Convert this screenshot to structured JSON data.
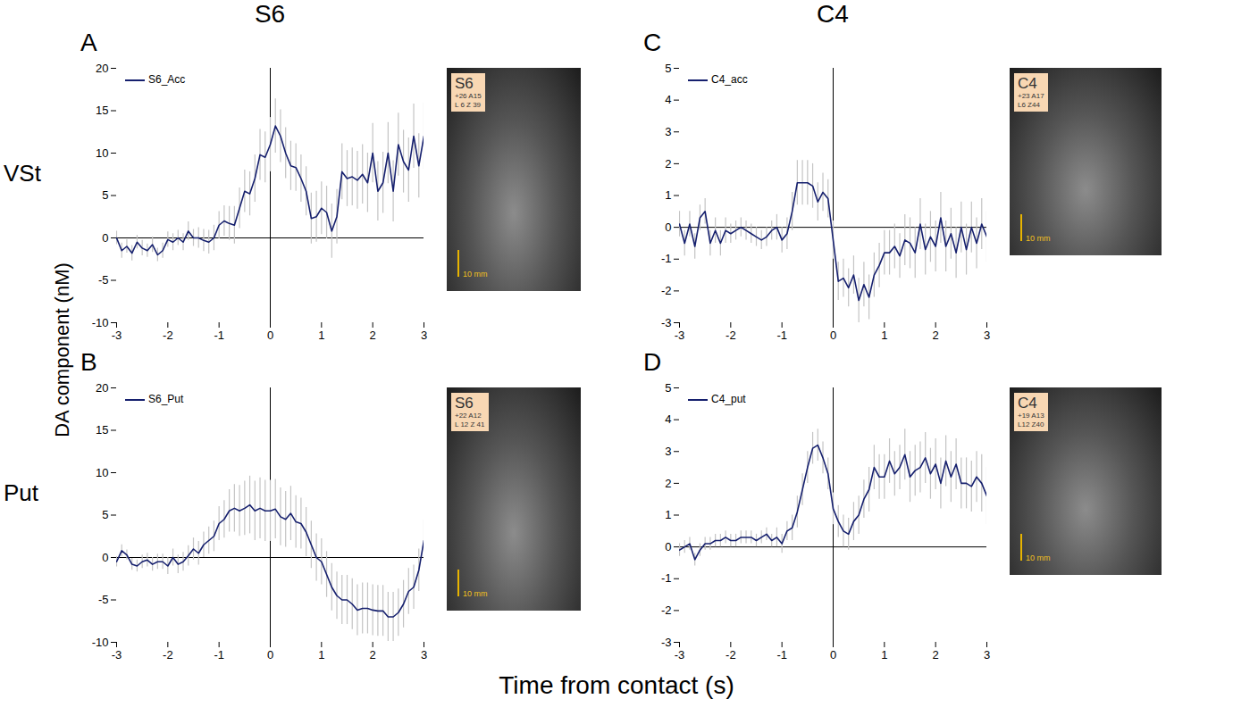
{
  "figure": {
    "column_titles": [
      "S6",
      "C4"
    ],
    "row_labels": [
      "VSt",
      "Put"
    ],
    "ylabel": "DA component (nM)",
    "xlabel": "Time from contact (s)"
  },
  "chart_data": [
    {
      "type": "line",
      "panel": "A",
      "legend": "top-left",
      "grid": false,
      "x": [
        -3,
        -2.9,
        -2.8,
        -2.7,
        -2.6,
        -2.5,
        -2.4,
        -2.3,
        -2.2,
        -2.1,
        -2,
        -1.9,
        -1.8,
        -1.7,
        -1.6,
        -1.5,
        -1.4,
        -1.3,
        -1.2,
        -1.1,
        -1,
        -0.9,
        -0.8,
        -0.7,
        -0.6,
        -0.5,
        -0.4,
        -0.3,
        -0.2,
        -0.1,
        0,
        0.1,
        0.2,
        0.3,
        0.4,
        0.5,
        0.6,
        0.7,
        0.8,
        0.9,
        1,
        1.1,
        1.2,
        1.3,
        1.4,
        1.5,
        1.6,
        1.7,
        1.8,
        1.9,
        2,
        2.1,
        2.2,
        2.3,
        2.4,
        2.5,
        2.6,
        2.7,
        2.8,
        2.9,
        3
      ],
      "xlim": [
        -3,
        3
      ],
      "xticks": [
        -3,
        -2,
        -1,
        0,
        1,
        2,
        3
      ],
      "ylim": [
        -10,
        20
      ],
      "yticks": [
        -10,
        -5,
        0,
        5,
        10,
        15,
        20
      ],
      "series": [
        {
          "name": "S6_Acc",
          "color": "#16206e",
          "values": [
            0,
            -1.5,
            -1,
            -1.8,
            -0.5,
            -1.2,
            -1.5,
            -0.8,
            -2,
            -1.5,
            -0.2,
            -0.5,
            0,
            -0.5,
            0.8,
            0,
            0,
            -0.3,
            -0.5,
            0,
            1.5,
            2,
            1.7,
            1.5,
            3.5,
            5.5,
            5.2,
            7,
            9.8,
            9.5,
            11,
            13.2,
            12,
            10,
            8.5,
            8.3,
            7,
            5.5,
            2.3,
            2.5,
            3.5,
            3,
            0.8,
            2.5,
            7.8,
            7,
            7.2,
            6.8,
            7.5,
            6.5,
            10,
            5.5,
            6.5,
            10,
            5.5,
            11,
            9,
            8,
            12,
            8.5,
            12
          ],
          "error": [
            0.8,
            0.9,
            0.8,
            0.9,
            0.8,
            0.9,
            0.8,
            0.9,
            0.8,
            0.9,
            0.9,
            1.0,
            0.9,
            1.0,
            1.1,
            1.0,
            1.2,
            1.3,
            1.4,
            1.5,
            1.6,
            1.8,
            2.0,
            2.2,
            2.4,
            2.5,
            2.6,
            2.8,
            3.0,
            3.0,
            3.2,
            3.2,
            3.1,
            3.0,
            2.9,
            2.8,
            2.8,
            2.9,
            3.0,
            3.0,
            3.1,
            3.1,
            3.2,
            3.2,
            3.3,
            3.3,
            3.4,
            3.4,
            3.5,
            3.5,
            3.5,
            3.5,
            3.6,
            3.6,
            3.6,
            3.7,
            3.7,
            3.8,
            3.8,
            3.8,
            3.9
          ]
        }
      ],
      "inset": {
        "label": "S6",
        "coords": [
          "+26 A15",
          "L 6 Z 39"
        ],
        "scale_label": "10 mm"
      }
    },
    {
      "type": "line",
      "panel": "B",
      "legend": "top-left",
      "grid": false,
      "x": [
        -3,
        -2.9,
        -2.8,
        -2.7,
        -2.6,
        -2.5,
        -2.4,
        -2.3,
        -2.2,
        -2.1,
        -2,
        -1.9,
        -1.8,
        -1.7,
        -1.6,
        -1.5,
        -1.4,
        -1.3,
        -1.2,
        -1.1,
        -1,
        -0.9,
        -0.8,
        -0.7,
        -0.6,
        -0.5,
        -0.4,
        -0.3,
        -0.2,
        -0.1,
        0,
        0.1,
        0.2,
        0.3,
        0.4,
        0.5,
        0.6,
        0.7,
        0.8,
        0.9,
        1,
        1.1,
        1.2,
        1.3,
        1.4,
        1.5,
        1.6,
        1.7,
        1.8,
        1.9,
        2,
        2.1,
        2.2,
        2.3,
        2.4,
        2.5,
        2.6,
        2.7,
        2.8,
        2.9,
        3
      ],
      "xlim": [
        -3,
        3
      ],
      "xticks": [
        -3,
        -2,
        -1,
        0,
        1,
        2,
        3
      ],
      "ylim": [
        -10,
        20
      ],
      "yticks": [
        -10,
        -5,
        0,
        5,
        10,
        15,
        20
      ],
      "series": [
        {
          "name": "S6_Put",
          "color": "#16206e",
          "values": [
            -0.5,
            0.8,
            0.3,
            -0.8,
            -1,
            -0.5,
            -0.3,
            -0.8,
            -0.5,
            -0.5,
            -1,
            0,
            -0.8,
            -0.5,
            0.2,
            1,
            0.5,
            1.5,
            2,
            2.5,
            4,
            4.5,
            5.5,
            5.8,
            5.5,
            5.8,
            6.2,
            5.5,
            5.8,
            5.5,
            5.5,
            5.7,
            4.8,
            4.5,
            5.2,
            4.2,
            4,
            3,
            1.5,
            0,
            -0.5,
            -2,
            -3.5,
            -4.5,
            -5,
            -5,
            -5.5,
            -6.2,
            -6,
            -6,
            -6.2,
            -6.3,
            -6.3,
            -7,
            -7,
            -6.5,
            -5.5,
            -4,
            -3.5,
            -1.5,
            2
          ],
          "error": [
            0.6,
            0.7,
            0.6,
            0.7,
            0.7,
            0.8,
            0.8,
            0.8,
            0.9,
            0.9,
            1.0,
            1.0,
            1.1,
            1.1,
            1.2,
            1.3,
            1.4,
            1.5,
            1.6,
            1.8,
            2.0,
            2.2,
            2.5,
            2.8,
            3.0,
            3.2,
            3.4,
            3.5,
            3.6,
            3.6,
            3.6,
            3.5,
            3.4,
            3.3,
            3.2,
            3.1,
            3.0,
            2.9,
            2.8,
            2.8,
            2.7,
            2.7,
            2.8,
            2.8,
            2.9,
            2.9,
            3.0,
            3.0,
            3.0,
            3.0,
            3.0,
            3.0,
            3.0,
            2.9,
            2.9,
            2.8,
            2.8,
            2.7,
            2.6,
            2.5,
            2.4
          ]
        }
      ],
      "inset": {
        "label": "S6",
        "coords": [
          "+22 A12",
          "L 12 Z 41"
        ],
        "scale_label": "10 mm"
      }
    },
    {
      "type": "line",
      "panel": "C",
      "legend": "top-left",
      "grid": false,
      "x": [
        -3,
        -2.9,
        -2.8,
        -2.7,
        -2.6,
        -2.5,
        -2.4,
        -2.3,
        -2.2,
        -2.1,
        -2,
        -1.9,
        -1.8,
        -1.7,
        -1.6,
        -1.5,
        -1.4,
        -1.3,
        -1.2,
        -1.1,
        -1,
        -0.9,
        -0.8,
        -0.7,
        -0.6,
        -0.5,
        -0.4,
        -0.3,
        -0.2,
        -0.1,
        0,
        0.1,
        0.2,
        0.3,
        0.4,
        0.5,
        0.6,
        0.7,
        0.8,
        0.9,
        1,
        1.1,
        1.2,
        1.3,
        1.4,
        1.5,
        1.6,
        1.7,
        1.8,
        1.9,
        2,
        2.1,
        2.2,
        2.3,
        2.4,
        2.5,
        2.6,
        2.7,
        2.8,
        2.9,
        3
      ],
      "xlim": [
        -3,
        3
      ],
      "xticks": [
        -3,
        -2,
        -1,
        0,
        1,
        2,
        3
      ],
      "ylim": [
        -3,
        5
      ],
      "yticks": [
        -3,
        -2,
        -1,
        0,
        1,
        2,
        3,
        4,
        5
      ],
      "series": [
        {
          "name": "C4_acc",
          "color": "#16206e",
          "values": [
            0.1,
            -0.5,
            0.1,
            -0.6,
            0.3,
            0.5,
            -0.5,
            -0.1,
            -0.5,
            -0.1,
            -0.2,
            -0.1,
            0,
            -0.1,
            -0.2,
            -0.3,
            -0.4,
            -0.3,
            -0.1,
            0,
            -0.4,
            -0.2,
            0.5,
            1.4,
            1.4,
            1.4,
            1.3,
            0.8,
            1.1,
            0.9,
            -0.4,
            -1.7,
            -1.6,
            -1.9,
            -1.5,
            -2.3,
            -1.8,
            -2.2,
            -1.5,
            -1.2,
            -0.8,
            -0.8,
            -0.6,
            -0.9,
            -0.4,
            -0.5,
            -0.8,
            0.1,
            -0.7,
            -0.3,
            -0.6,
            0.3,
            -0.6,
            -0.2,
            -0.8,
            0,
            -0.7,
            0,
            -0.5,
            0.1,
            -0.3
          ],
          "error": [
            0.4,
            0.4,
            0.4,
            0.4,
            0.4,
            0.4,
            0.4,
            0.4,
            0.4,
            0.4,
            0.3,
            0.3,
            0.3,
            0.3,
            0.3,
            0.3,
            0.3,
            0.3,
            0.3,
            0.4,
            0.4,
            0.5,
            0.6,
            0.7,
            0.7,
            0.7,
            0.7,
            0.6,
            0.6,
            0.6,
            0.6,
            0.6,
            0.6,
            0.6,
            0.6,
            0.7,
            0.7,
            0.7,
            0.7,
            0.7,
            0.7,
            0.7,
            0.7,
            0.7,
            0.8,
            0.8,
            0.8,
            0.8,
            0.8,
            0.8,
            0.8,
            0.8,
            0.8,
            0.8,
            0.8,
            0.8,
            0.8,
            0.8,
            0.8,
            0.8,
            0.8
          ]
        }
      ],
      "inset": {
        "label": "C4",
        "coords": [
          "+23 A17",
          "L6 Z44"
        ],
        "scale_label": "10 mm"
      }
    },
    {
      "type": "line",
      "panel": "D",
      "legend": "top-left",
      "grid": false,
      "x": [
        -3,
        -2.9,
        -2.8,
        -2.7,
        -2.6,
        -2.5,
        -2.4,
        -2.3,
        -2.2,
        -2.1,
        -2,
        -1.9,
        -1.8,
        -1.7,
        -1.6,
        -1.5,
        -1.4,
        -1.3,
        -1.2,
        -1.1,
        -1,
        -0.9,
        -0.8,
        -0.7,
        -0.6,
        -0.5,
        -0.4,
        -0.3,
        -0.2,
        -0.1,
        0,
        0.1,
        0.2,
        0.3,
        0.4,
        0.5,
        0.6,
        0.7,
        0.8,
        0.9,
        1,
        1.1,
        1.2,
        1.3,
        1.4,
        1.5,
        1.6,
        1.7,
        1.8,
        1.9,
        2,
        2.1,
        2.2,
        2.3,
        2.4,
        2.5,
        2.6,
        2.7,
        2.8,
        2.9,
        3
      ],
      "xlim": [
        -3,
        3
      ],
      "xticks": [
        -3,
        -2,
        -1,
        0,
        1,
        2,
        3
      ],
      "ylim": [
        -3,
        5
      ],
      "yticks": [
        -3,
        -2,
        -1,
        0,
        1,
        2,
        3,
        4,
        5
      ],
      "series": [
        {
          "name": "C4_put",
          "color": "#16206e",
          "values": [
            -0.1,
            0,
            0.1,
            -0.4,
            -0.1,
            0.1,
            0.1,
            0.2,
            0.2,
            0.3,
            0.2,
            0.2,
            0.3,
            0.3,
            0.3,
            0.2,
            0.3,
            0.4,
            0.2,
            0.3,
            0.1,
            0.5,
            0.6,
            1.1,
            1.8,
            2.5,
            3.1,
            3.2,
            2.8,
            2.3,
            1.2,
            0.8,
            0.5,
            0.4,
            0.8,
            1,
            1.5,
            1.8,
            2.5,
            2.2,
            2.2,
            2.7,
            2.3,
            2.5,
            2.9,
            2.2,
            2.4,
            2.5,
            2.8,
            2.3,
            2.6,
            2.0,
            2.7,
            2.2,
            2.6,
            2.0,
            2.0,
            1.9,
            2.2,
            2.0,
            1.6
          ],
          "error": [
            0.2,
            0.2,
            0.2,
            0.2,
            0.2,
            0.2,
            0.2,
            0.2,
            0.2,
            0.2,
            0.2,
            0.2,
            0.2,
            0.2,
            0.2,
            0.2,
            0.2,
            0.2,
            0.2,
            0.3,
            0.3,
            0.3,
            0.4,
            0.5,
            0.5,
            0.5,
            0.5,
            0.5,
            0.5,
            0.5,
            0.5,
            0.5,
            0.5,
            0.5,
            0.6,
            0.6,
            0.6,
            0.7,
            0.7,
            0.7,
            0.7,
            0.7,
            0.7,
            0.7,
            0.8,
            0.8,
            0.8,
            0.8,
            0.8,
            0.8,
            0.8,
            0.8,
            0.8,
            0.8,
            0.8,
            0.8,
            0.8,
            0.8,
            0.8,
            0.9,
            0.9
          ]
        }
      ],
      "inset": {
        "label": "C4",
        "coords": [
          "+19 A13",
          "L12 Z40"
        ],
        "scale_label": "10 mm"
      }
    }
  ]
}
